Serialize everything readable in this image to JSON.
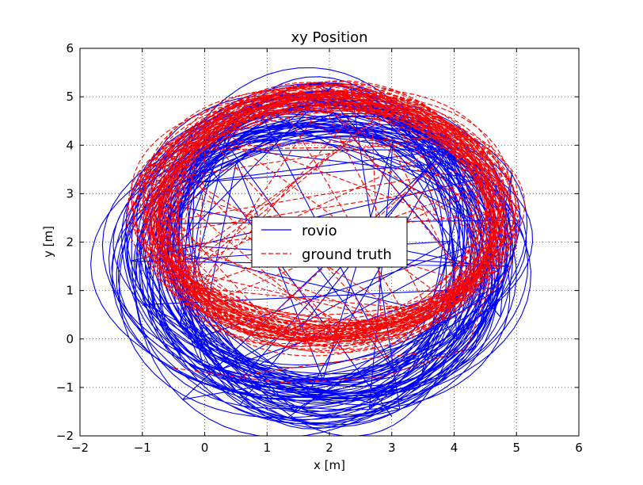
{
  "chart_data": {
    "type": "line",
    "title": "xy Position",
    "xlabel": "x [m]",
    "ylabel": "y [m]",
    "xlim": [
      -2,
      6
    ],
    "ylim": [
      -2,
      6
    ],
    "xticks": [
      -2,
      -1,
      0,
      1,
      2,
      3,
      4,
      5,
      6
    ],
    "yticks": [
      -2,
      -1,
      0,
      1,
      2,
      3,
      4,
      5,
      6
    ],
    "grid": true,
    "legend_position": "center",
    "series": [
      {
        "name": "rovio",
        "color": "#0000ff",
        "style": "solid",
        "loops": 60,
        "center": [
          1.85,
          1.75
        ],
        "radius_x": 2.75,
        "radius_y": 2.95,
        "noise": 0.55,
        "end_point": [
          3.0,
          -1.6
        ]
      },
      {
        "name": "ground truth",
        "color": "#ff0000",
        "style": "dashed",
        "loops": 60,
        "center": [
          1.95,
          2.55
        ],
        "radius_x": 2.75,
        "radius_y": 2.45,
        "noise": 0.25,
        "outliers": [
          [
            [
              -0.1,
              1.05
            ],
            [
              1.0,
              0.45
            ],
            [
              2.2,
              0.2
            ],
            [
              3.0,
              -0.4
            ]
          ],
          [
            [
              -0.5,
              -0.6
            ],
            [
              1.2,
              -0.9
            ],
            [
              2.8,
              -0.8
            ],
            [
              4.2,
              -0.2
            ],
            [
              4.55,
              1.0
            ],
            [
              4.5,
              2.6
            ]
          ],
          [
            [
              0.6,
              -0.75
            ],
            [
              1.9,
              -0.5
            ],
            [
              3.4,
              -0.3
            ]
          ]
        ]
      }
    ]
  }
}
